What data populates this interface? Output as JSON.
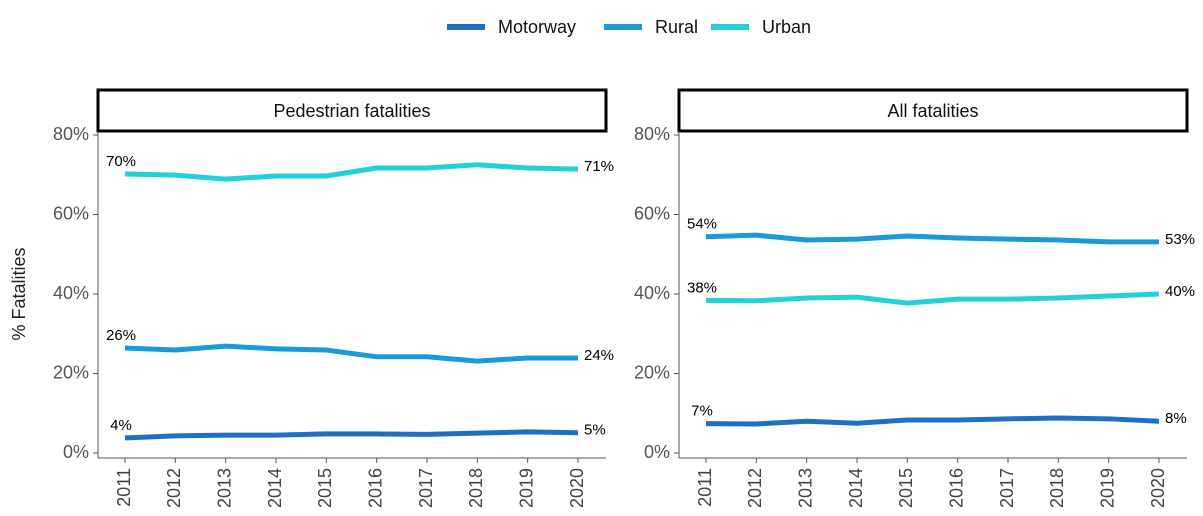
{
  "chart_data": [
    {
      "type": "line",
      "title": "Pedestrian fatalities",
      "y_label": "% Fatalities",
      "x": [
        2011,
        2012,
        2013,
        2014,
        2015,
        2016,
        2017,
        2018,
        2019,
        2020
      ],
      "ylim": [
        0,
        80
      ],
      "yticks": [
        {
          "value": 0,
          "label": "0%"
        },
        {
          "value": 20,
          "label": "20%"
        },
        {
          "value": 40,
          "label": "40%"
        },
        {
          "value": 60,
          "label": "60%"
        },
        {
          "value": 80,
          "label": "80%"
        }
      ],
      "series": [
        {
          "name": "Motorway",
          "color": "#1f6fc5",
          "values": [
            3.8,
            4.3,
            4.5,
            4.5,
            4.8,
            4.8,
            4.7,
            5.0,
            5.3,
            5.1
          ],
          "value_labels": [
            "4%",
            null,
            null,
            null,
            null,
            null,
            null,
            null,
            null,
            "5%"
          ]
        },
        {
          "name": "Rural",
          "color": "#1a9ad6",
          "values": [
            26.4,
            25.9,
            26.9,
            26.2,
            25.9,
            24.2,
            24.2,
            23.1,
            23.9,
            23.9
          ],
          "value_labels": [
            "26%",
            null,
            null,
            null,
            null,
            null,
            null,
            null,
            null,
            "24%"
          ]
        },
        {
          "name": "Urban",
          "color": "#22d0db",
          "values": [
            70.2,
            69.9,
            68.9,
            69.7,
            69.7,
            71.7,
            71.7,
            72.5,
            71.7,
            71.4
          ],
          "value_labels": [
            "70%",
            null,
            null,
            null,
            null,
            null,
            null,
            null,
            null,
            "71%"
          ]
        }
      ]
    },
    {
      "type": "line",
      "title": "All fatalities",
      "x": [
        2011,
        2012,
        2013,
        2014,
        2015,
        2016,
        2017,
        2018,
        2019,
        2020
      ],
      "ylim": [
        0,
        80
      ],
      "yticks": [
        {
          "value": 0,
          "label": "0%"
        },
        {
          "value": 20,
          "label": "20%"
        },
        {
          "value": 40,
          "label": "40%"
        },
        {
          "value": 60,
          "label": "60%"
        },
        {
          "value": 80,
          "label": "80%"
        }
      ],
      "series": [
        {
          "name": "Motorway",
          "color": "#1f6fc5",
          "values": [
            7.4,
            7.3,
            8.0,
            7.5,
            8.3,
            8.3,
            8.6,
            8.8,
            8.6,
            8.0
          ],
          "value_labels": [
            "7%",
            null,
            null,
            null,
            null,
            null,
            null,
            null,
            null,
            "8%"
          ]
        },
        {
          "name": "Rural",
          "color": "#1a9ad6",
          "values": [
            54.4,
            54.8,
            53.6,
            53.8,
            54.6,
            54.1,
            53.8,
            53.6,
            53.1,
            53.1
          ],
          "value_labels": [
            "54%",
            null,
            null,
            null,
            null,
            null,
            null,
            null,
            null,
            "53%"
          ]
        },
        {
          "name": "Urban",
          "color": "#22d0db",
          "values": [
            38.4,
            38.3,
            39.0,
            39.2,
            37.7,
            38.7,
            38.7,
            39.0,
            39.5,
            40.0
          ],
          "value_labels": [
            "38%",
            null,
            null,
            null,
            null,
            null,
            null,
            null,
            null,
            "40%"
          ]
        }
      ]
    }
  ]
}
